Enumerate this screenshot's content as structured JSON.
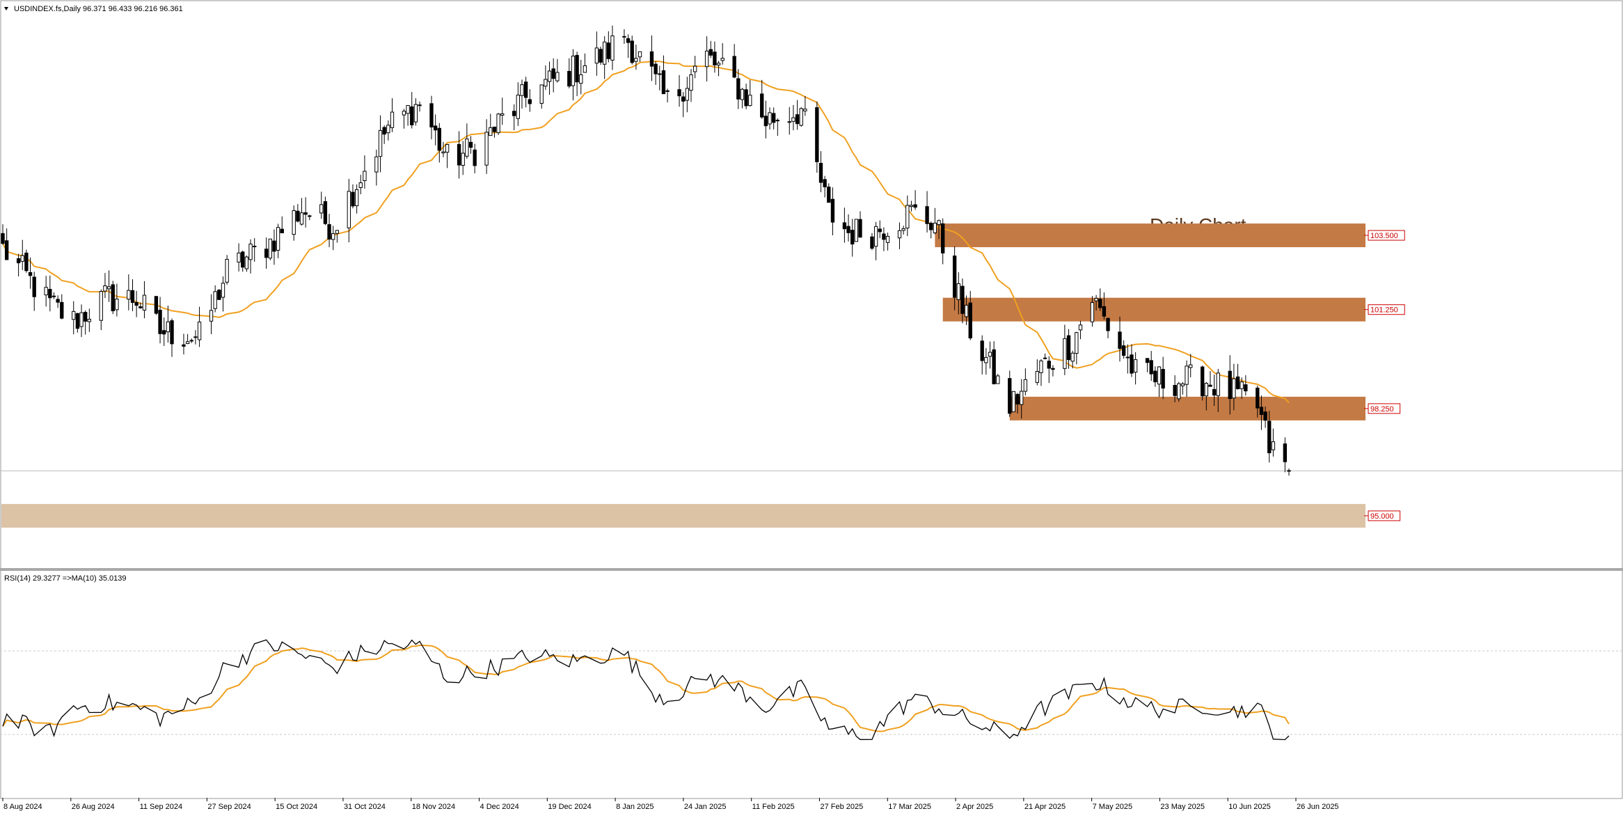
{
  "header": {
    "symbol_info": "USDINDEX.fs,Daily  96.371 96.433 96.216 96.361",
    "annotation": "Daily Chart"
  },
  "rsi_header": "RSI(14) 29.3277  =>MA(10) 35.0139",
  "colors": {
    "candle_up_fill": "#ffffff",
    "candle_down_fill": "#000000",
    "candle_outline": "#000000",
    "ma_line": "#f0a020",
    "rsi_line": "#000000",
    "rsi_ma_line": "#f0a020",
    "zone_resistance": "#c47a45",
    "zone_support": "#dcc3a6",
    "level_label_text": "#cc0000",
    "grid": "#c8c8c8",
    "annotation_text": "#5a3820"
  },
  "chart_data": [
    {
      "type": "candlestick",
      "title": "Daily Chart",
      "symbol": "USDINDEX.fs",
      "timeframe": "Daily",
      "last_bar": {
        "open": 96.371,
        "high": 96.433,
        "low": 96.216,
        "close": 96.361
      },
      "x_tick_labels": [
        "8 Aug 2024",
        "26 Aug 2024",
        "11 Sep 2024",
        "27 Sep 2024",
        "15 Oct 2024",
        "31 Oct 2024",
        "18 Nov 2024",
        "4 Dec 2024",
        "19 Dec 2024",
        "8 Jan 2025",
        "24 Jan 2025",
        "11 Feb 2025",
        "27 Feb 2025",
        "17 Mar 2025",
        "2 Apr 2025",
        "21 Apr 2025",
        "7 May 2025",
        "23 May 2025",
        "10 Jun 2025",
        "26 Jun 2025"
      ],
      "close_path": [
        {
          "date": "8 Aug 2024",
          "close": 103.1
        },
        {
          "date": "20 Aug 2024",
          "close": 101.4
        },
        {
          "date": "26 Aug 2024",
          "close": 100.9
        },
        {
          "date": "3 Sep 2024",
          "close": 101.6
        },
        {
          "date": "11 Sep 2024",
          "close": 101.6
        },
        {
          "date": "17 Sep 2024",
          "close": 100.6
        },
        {
          "date": "27 Sep 2024",
          "close": 100.4
        },
        {
          "date": "4 Oct 2024",
          "close": 102.4
        },
        {
          "date": "15 Oct 2024",
          "close": 103.3
        },
        {
          "date": "23 Oct 2024",
          "close": 104.3
        },
        {
          "date": "31 Oct 2024",
          "close": 103.8
        },
        {
          "date": "6 Nov 2024",
          "close": 105.1
        },
        {
          "date": "14 Nov 2024",
          "close": 106.8
        },
        {
          "date": "22 Nov 2024",
          "close": 107.5
        },
        {
          "date": "29 Nov 2024",
          "close": 105.8
        },
        {
          "date": "6 Dec 2024",
          "close": 106.1
        },
        {
          "date": "13 Dec 2024",
          "close": 107.0
        },
        {
          "date": "20 Dec 2024",
          "close": 107.8
        },
        {
          "date": "31 Dec 2024",
          "close": 108.5
        },
        {
          "date": "8 Jan 2025",
          "close": 109.0
        },
        {
          "date": "13 Jan 2025",
          "close": 109.6
        },
        {
          "date": "20 Jan 2025",
          "close": 108.3
        },
        {
          "date": "24 Jan 2025",
          "close": 107.5
        },
        {
          "date": "3 Feb 2025",
          "close": 108.9
        },
        {
          "date": "11 Feb 2025",
          "close": 108.0
        },
        {
          "date": "18 Feb 2025",
          "close": 107.0
        },
        {
          "date": "27 Feb 2025",
          "close": 107.3
        },
        {
          "date": "6 Mar 2025",
          "close": 104.2
        },
        {
          "date": "11 Mar 2025",
          "close": 103.6
        },
        {
          "date": "17 Mar 2025",
          "close": 103.6
        },
        {
          "date": "27 Mar 2025",
          "close": 104.2
        },
        {
          "date": "2 Apr 2025",
          "close": 103.9
        },
        {
          "date": "10 Apr 2025",
          "close": 100.9
        },
        {
          "date": "21 Apr 2025",
          "close": 98.3
        },
        {
          "date": "29 Apr 2025",
          "close": 99.5
        },
        {
          "date": "7 May 2025",
          "close": 100.3
        },
        {
          "date": "12 May 2025",
          "close": 101.6
        },
        {
          "date": "23 May 2025",
          "close": 99.3
        },
        {
          "date": "30 May 2025",
          "close": 99.1
        },
        {
          "date": "10 Jun 2025",
          "close": 99.1
        },
        {
          "date": "17 Jun 2025",
          "close": 98.7
        },
        {
          "date": "23 Jun 2025",
          "close": 98.3
        },
        {
          "date": "26 Jun 2025",
          "close": 97.1
        },
        {
          "date": "1 Jul 2025",
          "close": 96.4
        }
      ],
      "overlays": [
        {
          "kind": "moving_average",
          "color": "orange"
        }
      ],
      "zones": [
        {
          "label": "103.500",
          "price": 103.5,
          "from_date": "2 Apr 2025"
        },
        {
          "label": "101.250",
          "price": 101.25,
          "from_date": "4 Apr 2025"
        },
        {
          "label": "98.250",
          "price": 98.25,
          "from_date": "21 Apr 2025"
        },
        {
          "label": "95.000",
          "price": 95.0,
          "from_date": "8 Aug 2024"
        }
      ],
      "current_price_line": 96.361,
      "grid": false
    },
    {
      "type": "line",
      "indicator": "RSI(14)",
      "rsi_value": 29.3277,
      "ma_period": 10,
      "ma_value": 35.0139,
      "levels": [
        70,
        30
      ],
      "ylim": [
        0,
        100
      ],
      "rsi_path": [
        {
          "date": "8 Aug 2024",
          "value": 38
        },
        {
          "date": "20 Aug 2024",
          "value": 31
        },
        {
          "date": "26 Aug 2024",
          "value": 43
        },
        {
          "date": "3 Sep 2024",
          "value": 45
        },
        {
          "date": "11 Sep 2024",
          "value": 43
        },
        {
          "date": "17 Sep 2024",
          "value": 38
        },
        {
          "date": "27 Sep 2024",
          "value": 46
        },
        {
          "date": "4 Oct 2024",
          "value": 64
        },
        {
          "date": "15 Oct 2024",
          "value": 73
        },
        {
          "date": "23 Oct 2024",
          "value": 68
        },
        {
          "date": "31 Oct 2024",
          "value": 62
        },
        {
          "date": "6 Nov 2024",
          "value": 68
        },
        {
          "date": "14 Nov 2024",
          "value": 73
        },
        {
          "date": "22 Nov 2024",
          "value": 72
        },
        {
          "date": "29 Nov 2024",
          "value": 57
        },
        {
          "date": "6 Dec 2024",
          "value": 60
        },
        {
          "date": "13 Dec 2024",
          "value": 63
        },
        {
          "date": "20 Dec 2024",
          "value": 68
        },
        {
          "date": "31 Dec 2024",
          "value": 65
        },
        {
          "date": "8 Jan 2025",
          "value": 68
        },
        {
          "date": "13 Jan 2025",
          "value": 69
        },
        {
          "date": "20 Jan 2025",
          "value": 51
        },
        {
          "date": "24 Jan 2025",
          "value": 47
        },
        {
          "date": "3 Feb 2025",
          "value": 58
        },
        {
          "date": "11 Feb 2025",
          "value": 52
        },
        {
          "date": "18 Feb 2025",
          "value": 43
        },
        {
          "date": "27 Feb 2025",
          "value": 52
        },
        {
          "date": "6 Mar 2025",
          "value": 33
        },
        {
          "date": "11 Mar 2025",
          "value": 30
        },
        {
          "date": "17 Mar 2025",
          "value": 31
        },
        {
          "date": "27 Mar 2025",
          "value": 47
        },
        {
          "date": "2 Apr 2025",
          "value": 44
        },
        {
          "date": "10 Apr 2025",
          "value": 37
        },
        {
          "date": "21 Apr 2025",
          "value": 29
        },
        {
          "date": "29 Apr 2025",
          "value": 42
        },
        {
          "date": "7 May 2025",
          "value": 50
        },
        {
          "date": "12 May 2025",
          "value": 56
        },
        {
          "date": "23 May 2025",
          "value": 44
        },
        {
          "date": "30 May 2025",
          "value": 42
        },
        {
          "date": "10 Jun 2025",
          "value": 44
        },
        {
          "date": "17 Jun 2025",
          "value": 41
        },
        {
          "date": "23 Jun 2025",
          "value": 44
        },
        {
          "date": "26 Jun 2025",
          "value": 33
        },
        {
          "date": "1 Jul 2025",
          "value": 29
        }
      ]
    }
  ]
}
